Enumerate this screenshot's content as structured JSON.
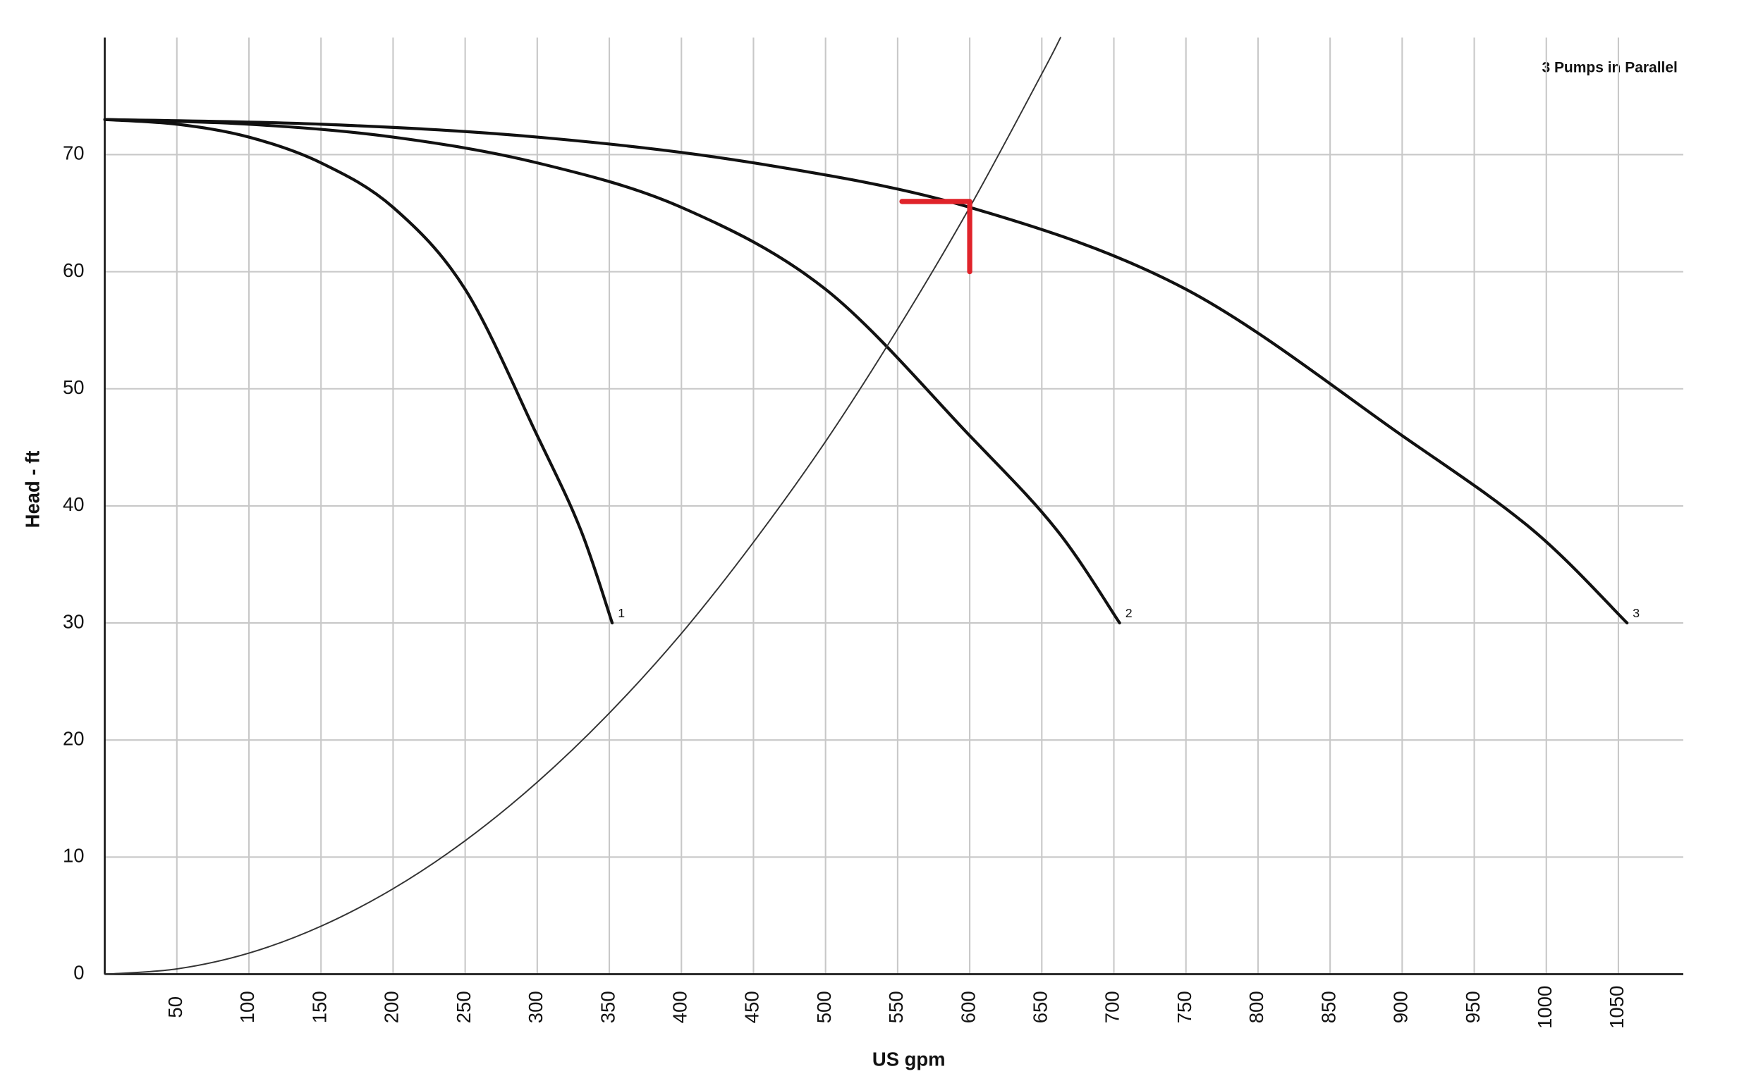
{
  "chart_data": {
    "type": "line",
    "title": "3 Pumps in Parallel",
    "x_label": "US gpm",
    "y_label": "Head - ft",
    "xlim": [
      0,
      1095
    ],
    "ylim": [
      0,
      80
    ],
    "xticks": [
      50,
      100,
      150,
      200,
      250,
      300,
      350,
      400,
      450,
      500,
      550,
      600,
      650,
      700,
      750,
      800,
      850,
      900,
      950,
      1000,
      1050
    ],
    "yticks": [
      0,
      10,
      20,
      30,
      40,
      50,
      60,
      70
    ],
    "grid": true,
    "series": [
      {
        "name": "1",
        "color": "#111111",
        "x": [
          0,
          50,
          100,
          150,
          200,
          250,
          300,
          330,
          352
        ],
        "y": [
          73,
          72.6,
          71.5,
          69.3,
          65.5,
          58.5,
          46,
          38,
          30
        ]
      },
      {
        "name": "2",
        "color": "#111111",
        "x": [
          0,
          100,
          200,
          300,
          400,
          500,
          600,
          660,
          704
        ],
        "y": [
          73,
          72.6,
          71.5,
          69.3,
          65.5,
          58.5,
          46,
          38,
          30
        ]
      },
      {
        "name": "3",
        "color": "#111111",
        "x": [
          0,
          150,
          300,
          450,
          600,
          750,
          900,
          990,
          1056
        ],
        "y": [
          73,
          72.6,
          71.5,
          69.3,
          65.5,
          58.5,
          46,
          38,
          30
        ]
      },
      {
        "color": "#333333",
        "x": [
          0,
          50,
          100,
          150,
          200,
          250,
          300,
          350,
          400,
          450,
          500,
          550,
          600,
          650,
          663
        ],
        "y": [
          0,
          0.45,
          1.8,
          4.1,
          7.3,
          11.4,
          16.4,
          22.3,
          29.1,
          36.9,
          45.5,
          55.1,
          65.5,
          76.9,
          80
        ]
      },
      {
        "color": "#e0232a",
        "x": [
          553,
          600,
          600
        ],
        "y": [
          66,
          66,
          60
        ]
      }
    ]
  }
}
